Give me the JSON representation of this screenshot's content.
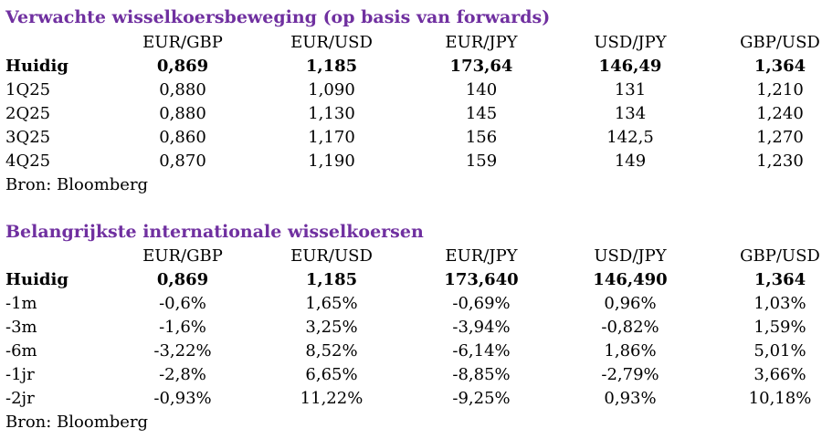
{
  "table1": {
    "title": "Verwachte wisselkoersbeweging (op basis van forwards)",
    "headers": [
      "EUR/GBP",
      "EUR/USD",
      "EUR/JPY",
      "USD/JPY",
      "GBP/USD"
    ],
    "rows": [
      {
        "label": "Huidig",
        "values": [
          "0,869",
          "1,185",
          "173,64",
          "146,49",
          "1,364"
        ]
      },
      {
        "label": "1Q25",
        "values": [
          "0,880",
          "1,090",
          "140",
          "131",
          "1,210"
        ]
      },
      {
        "label": "2Q25",
        "values": [
          "0,880",
          "1,130",
          "145",
          "134",
          "1,240"
        ]
      },
      {
        "label": "3Q25",
        "values": [
          "0,860",
          "1,170",
          "156",
          "142,5",
          "1,270"
        ]
      },
      {
        "label": "4Q25",
        "values": [
          "0,870",
          "1,190",
          "159",
          "149",
          "1,230"
        ]
      }
    ],
    "source": "Bron: Bloomberg"
  },
  "table2": {
    "title": "Belangrijkste internationale wisselkoersen",
    "headers": [
      "EUR/GBP",
      "EUR/USD",
      "EUR/JPY",
      "USD/JPY",
      "GBP/USD"
    ],
    "rows": [
      {
        "label": "Huidig",
        "values": [
          "0,869",
          "1,185",
          "173,640",
          "146,490",
          "1,364"
        ]
      },
      {
        "label": "-1m",
        "values": [
          "-0,6%",
          "1,65%",
          "-0,69%",
          "0,96%",
          "1,03%"
        ]
      },
      {
        "label": "-3m",
        "values": [
          "-1,6%",
          "3,25%",
          "-3,94%",
          "-0,82%",
          "1,59%"
        ]
      },
      {
        "label": "-6m",
        "values": [
          "-3,22%",
          "8,52%",
          "-6,14%",
          "1,86%",
          "5,01%"
        ]
      },
      {
        "label": "-1jr",
        "values": [
          "-2,8%",
          "6,65%",
          "-8,85%",
          "-2,79%",
          "3,66%"
        ]
      },
      {
        "label": "-2jr",
        "values": [
          "-0,93%",
          "11,22%",
          "-9,25%",
          "0,93%",
          "10,18%"
        ]
      }
    ],
    "source": "Bron: Bloomberg"
  },
  "colors": {
    "title": "#7030a0",
    "text": "#000000",
    "background": "#ffffff"
  }
}
